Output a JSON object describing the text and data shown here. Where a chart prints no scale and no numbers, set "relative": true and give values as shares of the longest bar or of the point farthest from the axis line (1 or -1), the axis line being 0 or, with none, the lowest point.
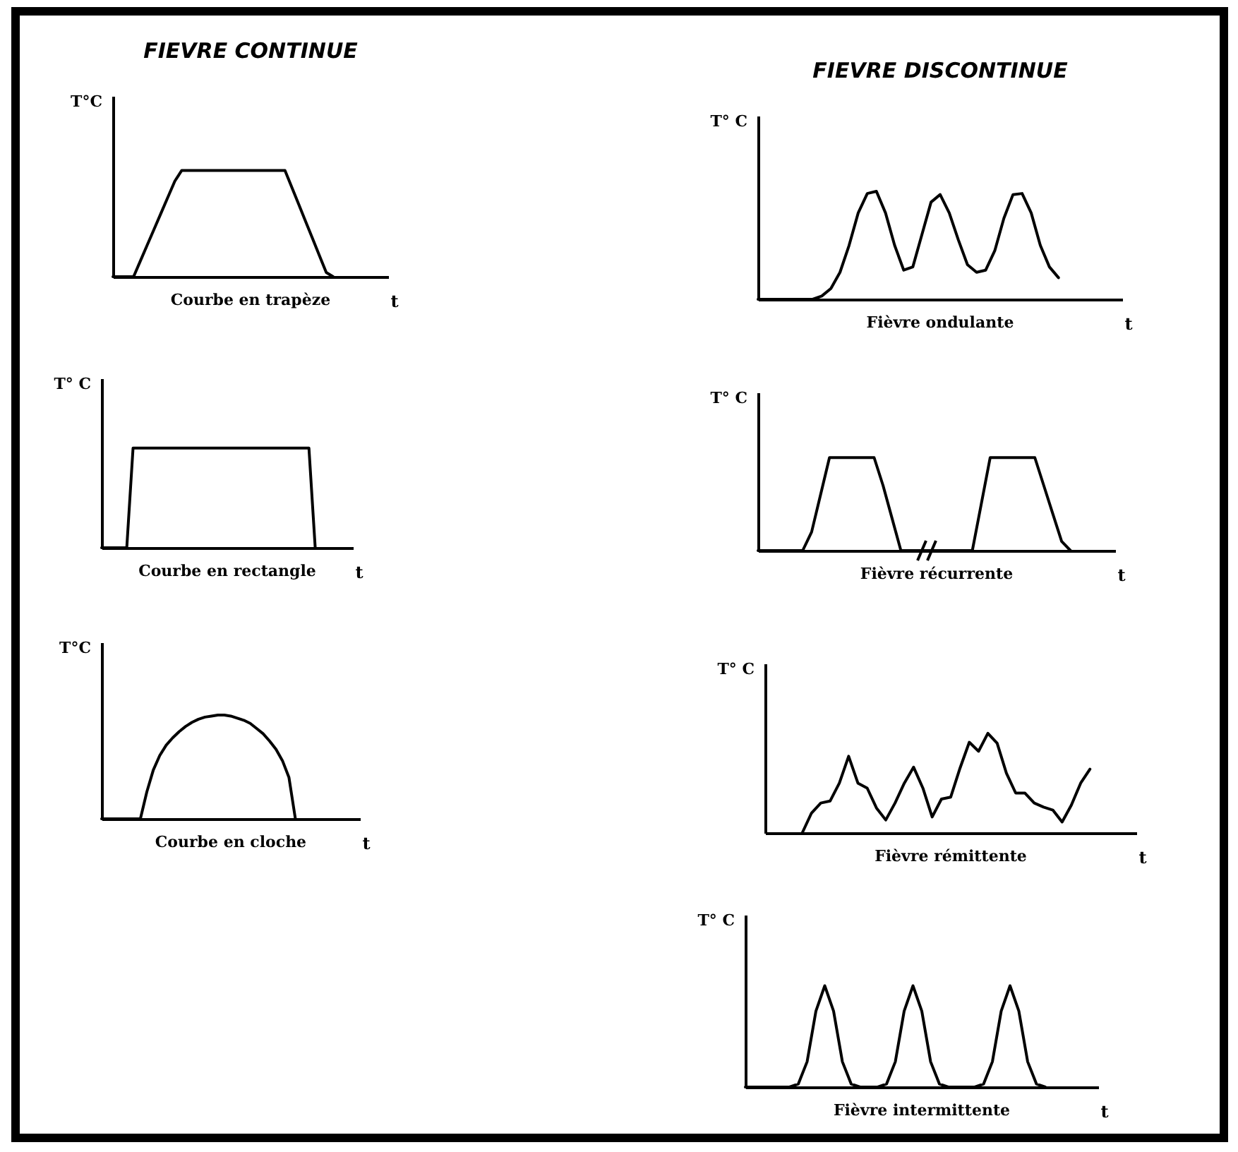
{
  "chart_data": [
    {
      "type": "line",
      "title": "FIEVRE CONTINUE",
      "xlabel": "t",
      "ylabel": "T°C",
      "annotations": [
        "Courbe en trapèze"
      ],
      "relative": true,
      "color": "#000000",
      "categories": [
        null,
        null,
        null,
        null,
        null,
        null,
        null,
        null,
        null,
        null,
        null,
        null,
        null,
        null,
        null,
        null,
        null,
        null,
        null,
        null,
        null,
        null,
        null,
        null,
        null,
        null,
        null,
        null,
        null,
        null,
        null,
        null,
        null,
        null,
        null,
        null,
        null,
        null,
        null,
        null,
        null
      ],
      "values": [
        0,
        0,
        0,
        0,
        0.15,
        0.3,
        0.45,
        0.6,
        0.75,
        0.9,
        1,
        1,
        1,
        1,
        1,
        1,
        1,
        1,
        1,
        1,
        1,
        1,
        1,
        1,
        1,
        1,
        0.84,
        0.68,
        0.52,
        0.36,
        0.2,
        0.04,
        0,
        null,
        null,
        null,
        null,
        null,
        null,
        null,
        null
      ]
    },
    {
      "type": "line",
      "xlabel": "t",
      "ylabel": "T° C",
      "annotations": [
        "Courbe en rectangle"
      ],
      "relative": true,
      "color": "#000000",
      "categories": [
        null,
        null,
        null,
        null,
        null,
        null,
        null,
        null,
        null,
        null,
        null,
        null,
        null,
        null,
        null,
        null,
        null,
        null,
        null,
        null,
        null,
        null,
        null,
        null,
        null,
        null,
        null,
        null,
        null,
        null,
        null,
        null,
        null,
        null,
        null,
        null,
        null,
        null,
        null,
        null,
        null
      ],
      "values": [
        0,
        0,
        0,
        0,
        0,
        1,
        1,
        1,
        1,
        1,
        1,
        1,
        1,
        1,
        1,
        1,
        1,
        1,
        1,
        1,
        1,
        1,
        1,
        1,
        1,
        1,
        1,
        1,
        1,
        1,
        1,
        1,
        1,
        1,
        0,
        null,
        null,
        null,
        null,
        null,
        null
      ]
    },
    {
      "type": "line",
      "xlabel": "t",
      "ylabel": "T°C",
      "annotations": [
        "Courbe en cloche"
      ],
      "relative": true,
      "color": "#000000",
      "categories": [
        null,
        null,
        null,
        null,
        null,
        null,
        null,
        null,
        null,
        null,
        null,
        null,
        null,
        null,
        null,
        null,
        null,
        null,
        null,
        null,
        null,
        null,
        null,
        null,
        null,
        null,
        null,
        null,
        null,
        null,
        null,
        null,
        null,
        null,
        null,
        null,
        null,
        null,
        null,
        null,
        null
      ],
      "values": [
        0,
        0,
        0,
        0,
        0,
        0,
        0,
        0.26,
        0.47,
        0.61,
        0.71,
        0.78,
        0.84,
        0.89,
        0.93,
        0.96,
        0.98,
        0.99,
        1,
        1,
        0.99,
        0.97,
        0.95,
        0.92,
        0.87,
        0.82,
        0.75,
        0.67,
        0.56,
        0.4,
        0,
        null,
        null,
        null,
        null,
        null,
        null,
        null,
        null,
        null,
        null
      ]
    },
    {
      "type": "line",
      "title": "FIEVRE DISCONTINUE",
      "xlabel": "t",
      "ylabel": "T° C",
      "annotations": [
        "Fièvre ondulante"
      ],
      "relative": true,
      "color": "#000000",
      "categories": [
        null,
        null,
        null,
        null,
        null,
        null,
        null,
        null,
        null,
        null,
        null,
        null,
        null,
        null,
        null,
        null,
        null,
        null,
        null,
        null,
        null,
        null,
        null,
        null,
        null,
        null,
        null,
        null,
        null,
        null,
        null,
        null,
        null,
        null,
        null,
        null,
        null,
        null,
        null,
        null,
        null
      ],
      "values": [
        0,
        0,
        0,
        0,
        0,
        0,
        0,
        0.03,
        0.1,
        0.25,
        0.5,
        0.8,
        0.98,
        1,
        0.8,
        0.5,
        0.27,
        0.3,
        0.6,
        0.9,
        0.97,
        0.8,
        0.55,
        0.32,
        0.25,
        0.27,
        0.45,
        0.75,
        0.97,
        0.98,
        0.8,
        0.5,
        0.3,
        0.2,
        null,
        null,
        null,
        null,
        null,
        null,
        null
      ]
    },
    {
      "type": "line",
      "xlabel": "t",
      "ylabel": "T° C",
      "annotations": [
        "Fièvre récurrente"
      ],
      "relative": true,
      "color": "#000000",
      "categories": [
        null,
        null,
        null,
        null,
        null,
        null,
        null,
        null,
        null,
        null,
        null,
        null,
        null,
        null,
        null,
        null,
        null,
        null,
        null,
        null,
        null,
        null,
        null,
        null,
        null,
        null,
        null,
        null,
        null,
        null,
        null,
        null,
        null,
        null,
        null,
        null,
        null,
        null,
        null,
        null,
        null
      ],
      "values": [
        0,
        0,
        0,
        0,
        0,
        0,
        0.2,
        0.6,
        1,
        1,
        1,
        1,
        1,
        1,
        0.7,
        0.35,
        0,
        0,
        0,
        0,
        0,
        0,
        0,
        0,
        0,
        0.5,
        1,
        1,
        1,
        1,
        1,
        1,
        0.7,
        0.4,
        0.1,
        0,
        null,
        null,
        null,
        null,
        null
      ]
    },
    {
      "type": "line",
      "xlabel": "t",
      "ylabel": "T° C",
      "annotations": [
        "Fièvre rémittente"
      ],
      "relative": true,
      "color": "#000000",
      "categories": [
        null,
        null,
        null,
        null,
        null,
        null,
        null,
        null,
        null,
        null,
        null,
        null,
        null,
        null,
        null,
        null,
        null,
        null,
        null,
        null,
        null,
        null,
        null,
        null,
        null,
        null,
        null,
        null,
        null,
        null,
        null,
        null,
        null,
        null,
        null,
        null,
        null,
        null,
        null,
        null,
        null
      ],
      "values": [
        null,
        null,
        null,
        null,
        0,
        0.2,
        0.3,
        0.32,
        0.5,
        0.77,
        0.5,
        0.45,
        0.25,
        0.13,
        0.3,
        0.5,
        0.66,
        0.45,
        0.16,
        0.34,
        0.36,
        0.65,
        0.91,
        0.82,
        1,
        0.9,
        0.6,
        0.4,
        0.4,
        0.3,
        0.26,
        0.23,
        0.11,
        0.28,
        0.5,
        0.64,
        null,
        null,
        null,
        null,
        null
      ]
    },
    {
      "type": "line",
      "xlabel": "t",
      "ylabel": "T° C",
      "annotations": [
        "Fièvre intermittente"
      ],
      "relative": true,
      "color": "#000000",
      "categories": [
        null,
        null,
        null,
        null,
        null,
        null,
        null,
        null,
        null,
        null,
        null,
        null,
        null,
        null,
        null,
        null,
        null,
        null,
        null,
        null,
        null,
        null,
        null,
        null,
        null,
        null,
        null,
        null,
        null,
        null,
        null,
        null,
        null,
        null,
        null,
        null,
        null,
        null,
        null,
        null,
        null
      ],
      "values": [
        0,
        0,
        0,
        0,
        0,
        0,
        0.03,
        0.25,
        0.75,
        1,
        0.75,
        0.25,
        0.03,
        0,
        0,
        0,
        0.03,
        0.25,
        0.75,
        1,
        0.75,
        0.25,
        0.03,
        0,
        0,
        0,
        0,
        0.03,
        0.25,
        0.75,
        1,
        0.75,
        0.25,
        0.03,
        0,
        null,
        null,
        null,
        null,
        null,
        null
      ]
    }
  ]
}
